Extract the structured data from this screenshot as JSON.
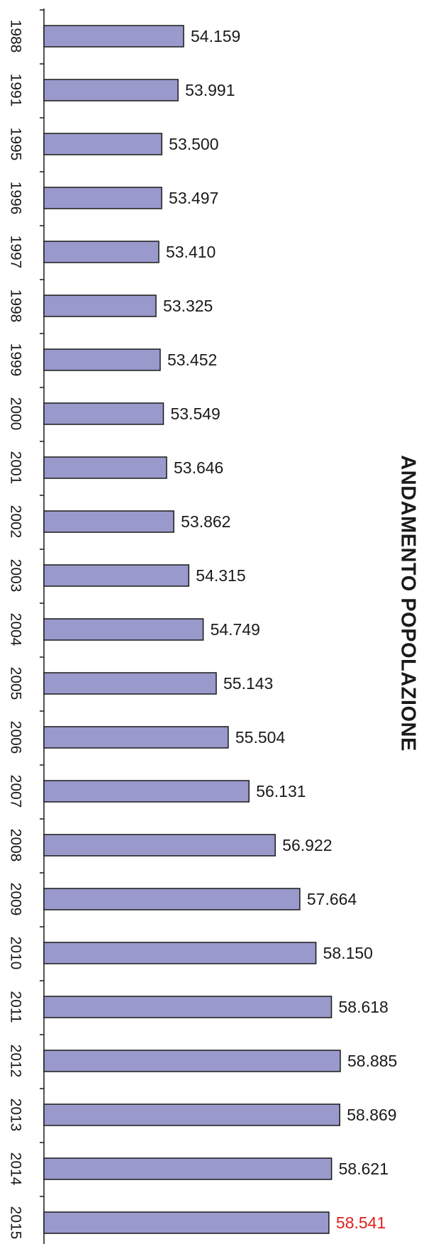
{
  "chart_data": {
    "type": "bar",
    "orientation": "horizontal",
    "title": "ANDAMENTO POPOLAZIONE",
    "categories": [
      "1988",
      "1991",
      "1995",
      "1996",
      "1997",
      "1998",
      "1999",
      "2000",
      "2001",
      "2002",
      "2003",
      "2004",
      "2005",
      "2006",
      "2007",
      "2008",
      "2009",
      "2010",
      "2011",
      "2012",
      "2013",
      "2014",
      "2015"
    ],
    "values": [
      54159,
      53991,
      53500,
      53497,
      53410,
      53325,
      53452,
      53549,
      53646,
      53862,
      54315,
      54749,
      55143,
      55504,
      56131,
      56922,
      57664,
      58150,
      58618,
      58885,
      58869,
      58621,
      58541
    ],
    "data_labels": [
      "54.159",
      "53.991",
      "53.500",
      "53.497",
      "53.410",
      "53.325",
      "53.452",
      "53.549",
      "53.646",
      "53.862",
      "54.315",
      "54.749",
      "55.143",
      "55.504",
      "56.131",
      "56.922",
      "57.664",
      "58.150",
      "58.618",
      "58.885",
      "58.869",
      "58.621",
      "58.541"
    ],
    "highlight_index": 22,
    "grid": false,
    "legend": "none",
    "colors": {
      "bar_fill": "#9999cc",
      "bar_stroke": "#1a1a1a",
      "label": "#1a1a1a",
      "highlight_label": "#e0201c",
      "axis": "#1a1a1a"
    }
  }
}
